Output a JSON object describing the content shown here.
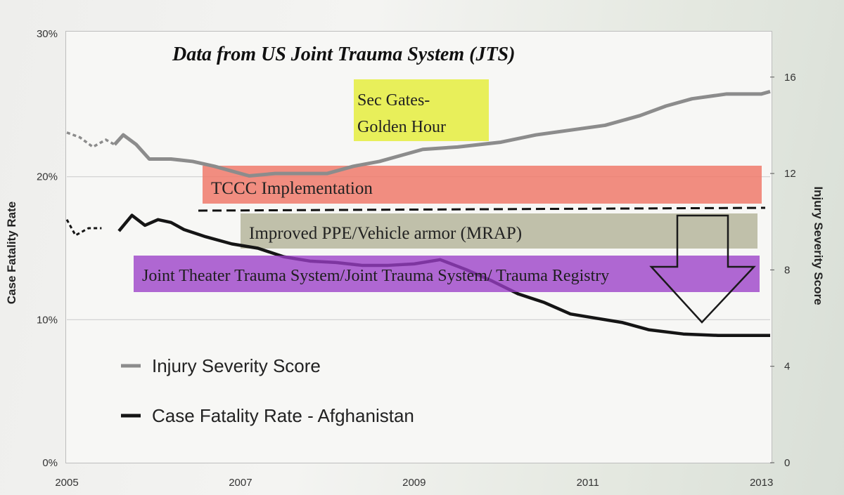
{
  "chart_data": {
    "type": "line",
    "title": "Data from US Joint Trauma System (JTS)",
    "x_ticks": [
      "2005",
      "2007",
      "2009",
      "2011",
      "2013"
    ],
    "xlim": [
      2005,
      2013.1
    ],
    "left_axis": {
      "label": "Case Fatality Rate",
      "ticks": [
        "0%",
        "10%",
        "20%",
        "30%"
      ],
      "range": [
        0,
        30
      ]
    },
    "right_axis": {
      "label": "Injury Severity Score",
      "ticks": [
        "0",
        "4",
        "8",
        "12",
        "16"
      ],
      "range": [
        0,
        17.8
      ]
    },
    "grid": "horizontal at left-axis ticks",
    "legend_position": "lower-left",
    "series": [
      {
        "name": "Injury Severity Score",
        "axis": "right",
        "color": "#8c8c8c",
        "x": [
          2005.0,
          2005.15,
          2005.3,
          2005.45,
          2005.55,
          2005.65,
          2005.8,
          2005.95,
          2006.2,
          2006.45,
          2006.7,
          2006.9,
          2007.1,
          2007.4,
          2007.7,
          2008.0,
          2008.3,
          2008.6,
          2008.9,
          2009.1,
          2009.5,
          2010.0,
          2010.4,
          2010.8,
          2011.2,
          2011.6,
          2011.9,
          2012.2,
          2012.6,
          2013.0,
          2013.1
        ],
        "y": [
          13.7,
          13.5,
          13.1,
          13.4,
          13.2,
          13.6,
          13.2,
          12.6,
          12.6,
          12.5,
          12.3,
          12.1,
          11.9,
          12.0,
          12.0,
          12.0,
          12.3,
          12.5,
          12.8,
          13.0,
          13.1,
          13.3,
          13.6,
          13.8,
          14.0,
          14.4,
          14.8,
          15.1,
          15.3,
          15.3,
          15.4
        ],
        "dashed_until": 2005.6
      },
      {
        "name": "Case Fatality Rate - Afghanistan",
        "axis": "left",
        "color": "#151515",
        "x": [
          2005.0,
          2005.1,
          2005.25,
          2005.4,
          2005.6,
          2005.75,
          2005.9,
          2006.05,
          2006.2,
          2006.35,
          2006.5,
          2006.6,
          2006.9,
          2007.2,
          2007.5,
          2007.8,
          2008.1,
          2008.4,
          2008.7,
          2009.0,
          2009.3,
          2009.6,
          2009.9,
          2010.2,
          2010.5,
          2010.8,
          2011.1,
          2011.4,
          2011.7,
          2012.1,
          2012.5,
          2012.9,
          2013.1
        ],
        "y": [
          17.0,
          15.9,
          16.4,
          16.4,
          16.2,
          17.3,
          16.6,
          17.0,
          16.8,
          16.3,
          16.0,
          15.8,
          15.3,
          15.0,
          14.4,
          14.1,
          14.0,
          13.8,
          13.8,
          13.9,
          14.2,
          13.5,
          12.7,
          11.8,
          11.2,
          10.4,
          10.1,
          9.8,
          9.3,
          9.0,
          8.9,
          8.9,
          8.9
        ],
        "dashed_until": 2005.55
      }
    ],
    "annotations": [
      {
        "id": "sec-gates",
        "text_lines": [
          "Sec Gates-",
          "Golden Hour"
        ],
        "color": "#e8ef5a"
      },
      {
        "id": "tccc",
        "text": "TCCC Implementation",
        "color": "#f07a6b"
      },
      {
        "id": "ppe",
        "text": "Improved PPE/Vehicle armor (MRAP)",
        "color": "#b9b9a2"
      },
      {
        "id": "jts",
        "text": "Joint Theater Trauma System/Joint Trauma System/ Trauma Registry",
        "color": "#9b3fc8"
      }
    ]
  }
}
